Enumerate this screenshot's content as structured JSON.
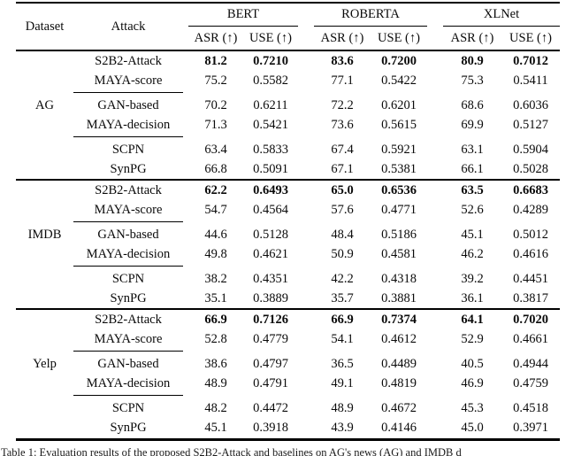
{
  "header": {
    "dataset": "Dataset",
    "attack": "Attack",
    "models": [
      "BERT",
      "ROBERTA",
      "XLNet"
    ],
    "asr": "ASR (↑)",
    "use": "USE (↑)"
  },
  "blocks": [
    {
      "dataset": "AG",
      "rows": [
        {
          "attack": "S2B2-Attack",
          "v": [
            "81.2",
            "0.7210",
            "83.6",
            "0.7200",
            "80.9",
            "0.7012"
          ]
        },
        {
          "attack": "MAYA-score",
          "v": [
            "75.2",
            "0.5582",
            "77.1",
            "0.5422",
            "75.3",
            "0.5411"
          ]
        },
        {
          "attack": "GAN-based",
          "v": [
            "70.2",
            "0.6211",
            "72.2",
            "0.6201",
            "68.6",
            "0.6036"
          ]
        },
        {
          "attack": "MAYA-decision",
          "v": [
            "71.3",
            "0.5421",
            "73.6",
            "0.5615",
            "69.9",
            "0.5127"
          ]
        },
        {
          "attack": "SCPN",
          "v": [
            "63.4",
            "0.5833",
            "67.4",
            "0.5921",
            "63.1",
            "0.5904"
          ]
        },
        {
          "attack": "SynPG",
          "v": [
            "66.8",
            "0.5091",
            "67.1",
            "0.5381",
            "66.1",
            "0.5028"
          ]
        }
      ]
    },
    {
      "dataset": "IMDB",
      "rows": [
        {
          "attack": "S2B2-Attack",
          "v": [
            "62.2",
            "0.6493",
            "65.0",
            "0.6536",
            "63.5",
            "0.6683"
          ]
        },
        {
          "attack": "MAYA-score",
          "v": [
            "54.7",
            "0.4564",
            "57.6",
            "0.4771",
            "52.6",
            "0.4289"
          ]
        },
        {
          "attack": "GAN-based",
          "v": [
            "44.6",
            "0.5128",
            "48.4",
            "0.5186",
            "45.1",
            "0.5012"
          ]
        },
        {
          "attack": "MAYA-decision",
          "v": [
            "49.8",
            "0.4621",
            "50.9",
            "0.4581",
            "46.2",
            "0.4616"
          ]
        },
        {
          "attack": "SCPN",
          "v": [
            "38.2",
            "0.4351",
            "42.2",
            "0.4318",
            "39.2",
            "0.4451"
          ]
        },
        {
          "attack": "SynPG",
          "v": [
            "35.1",
            "0.3889",
            "35.7",
            "0.3881",
            "36.1",
            "0.3817"
          ]
        }
      ]
    },
    {
      "dataset": "Yelp",
      "rows": [
        {
          "attack": "S2B2-Attack",
          "v": [
            "66.9",
            "0.7126",
            "66.9",
            "0.7374",
            "64.1",
            "0.7020"
          ]
        },
        {
          "attack": "MAYA-score",
          "v": [
            "52.8",
            "0.4779",
            "54.1",
            "0.4612",
            "52.9",
            "0.4661"
          ]
        },
        {
          "attack": "GAN-based",
          "v": [
            "38.6",
            "0.4797",
            "36.5",
            "0.4489",
            "40.5",
            "0.4944"
          ]
        },
        {
          "attack": "MAYA-decision",
          "v": [
            "48.9",
            "0.4791",
            "49.1",
            "0.4819",
            "46.9",
            "0.4759"
          ]
        },
        {
          "attack": "SCPN",
          "v": [
            "48.2",
            "0.4472",
            "48.9",
            "0.4672",
            "45.3",
            "0.4518"
          ]
        },
        {
          "attack": "SynPG",
          "v": [
            "45.1",
            "0.3918",
            "43.9",
            "0.4146",
            "45.0",
            "0.3971"
          ]
        }
      ]
    }
  ],
  "caption": "Table 1: Evaluation results of the proposed S2B2-Attack and baselines on AG's news (AG) and IMDB d",
  "colors": {
    "text": "#0a0a0a",
    "rule": "#000000",
    "background": "#ffffff"
  }
}
